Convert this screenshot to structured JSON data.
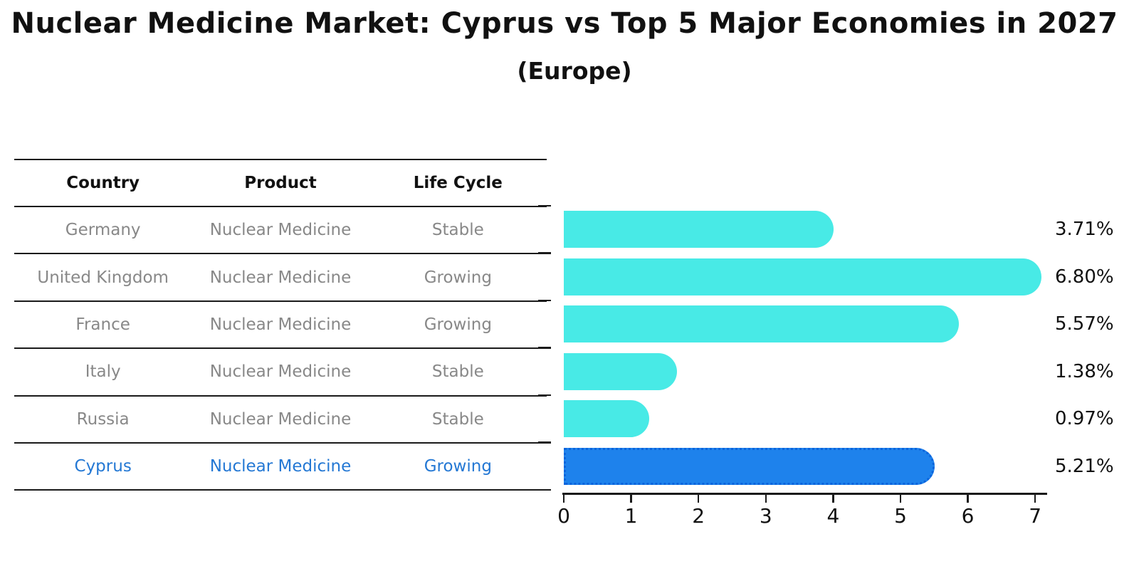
{
  "title": "Nuclear Medicine Market: Cyprus vs Top 5 Major Economies in 2027",
  "subtitle": "(Europe)",
  "table": {
    "headers": [
      "Country",
      "Product",
      "Life Cycle"
    ],
    "rows": [
      {
        "country": "Germany",
        "product": "Nuclear Medicine",
        "life_cycle": "Stable",
        "highlight": false
      },
      {
        "country": "United Kingdom",
        "product": "Nuclear Medicine",
        "life_cycle": "Growing",
        "highlight": false
      },
      {
        "country": "France",
        "product": "Nuclear Medicine",
        "life_cycle": "Growing",
        "highlight": false
      },
      {
        "country": "Italy",
        "product": "Nuclear Medicine",
        "life_cycle": "Stable",
        "highlight": false
      },
      {
        "country": "Russia",
        "product": "Nuclear Medicine",
        "life_cycle": "Stable",
        "highlight": false
      },
      {
        "country": "Cyprus",
        "product": "Nuclear Medicine",
        "life_cycle": "Growing",
        "highlight": true
      }
    ]
  },
  "chart_data": {
    "type": "bar",
    "orientation": "horizontal",
    "title": "Nuclear Medicine Market: Cyprus vs Top 5 Major Economies in 2027",
    "subtitle": "(Europe)",
    "categories": [
      "Germany",
      "United Kingdom",
      "France",
      "Italy",
      "Russia",
      "Cyprus"
    ],
    "values": [
      3.71,
      6.8,
      5.57,
      1.38,
      0.97,
      5.21
    ],
    "value_labels": [
      "3.71%",
      "6.80%",
      "5.57%",
      "1.38%",
      "0.97%",
      "5.21%"
    ],
    "xlim": [
      0,
      7
    ],
    "xticks": [
      0,
      1,
      2,
      3,
      4,
      5,
      6,
      7
    ],
    "grid": false,
    "legend": false,
    "bar_color": "#48eae6",
    "highlight_category": "Cyprus",
    "highlight_color": "#1e82ec",
    "highlight_border_color": "#0c64dc",
    "highlight_text_color": "#2478d4"
  },
  "colors": {
    "background": "#ffffff",
    "table_line": "#1a1a1a",
    "table_text": "#888888",
    "header_text": "#111111",
    "axis": "#1a1a1a"
  }
}
